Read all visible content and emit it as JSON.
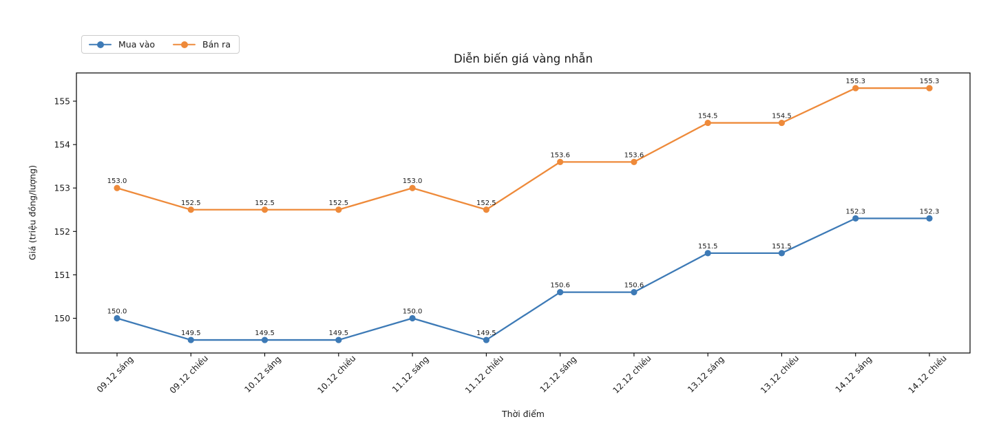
{
  "chart_data": {
    "type": "line",
    "title": "Diễn biến giá vàng nhẫn",
    "xlabel": "Thời điểm",
    "ylabel": "Giá (triệu đồng/lượng)",
    "categories": [
      "09.12 sáng",
      "09.12 chiều",
      "10.12 sáng",
      "10.12 chiều",
      "11.12 sáng",
      "11.12 chiều",
      "12.12 sáng",
      "12.12 chiều",
      "13.12 sáng",
      "13.12 chiều",
      "14.12 sáng",
      "14.12 chiều"
    ],
    "series": [
      {
        "name": "Mua vào",
        "color": "#3d7ab6",
        "values": [
          150.0,
          149.5,
          149.5,
          149.5,
          150.0,
          149.5,
          150.6,
          150.6,
          151.5,
          151.5,
          152.3,
          152.3
        ]
      },
      {
        "name": "Bán ra",
        "color": "#ee8a3a",
        "values": [
          153.0,
          152.5,
          152.5,
          152.5,
          153.0,
          152.5,
          153.6,
          153.6,
          154.5,
          154.5,
          155.3,
          155.3
        ]
      }
    ],
    "yticks": [
      150,
      151,
      152,
      153,
      154,
      155
    ],
    "ylim": [
      149.2,
      155.65
    ],
    "grid": false,
    "legend_position": "top-left",
    "point_labels": true,
    "point_label_decimals": 1,
    "axis_color": "#000000",
    "text_color": "#1a1a1a"
  }
}
